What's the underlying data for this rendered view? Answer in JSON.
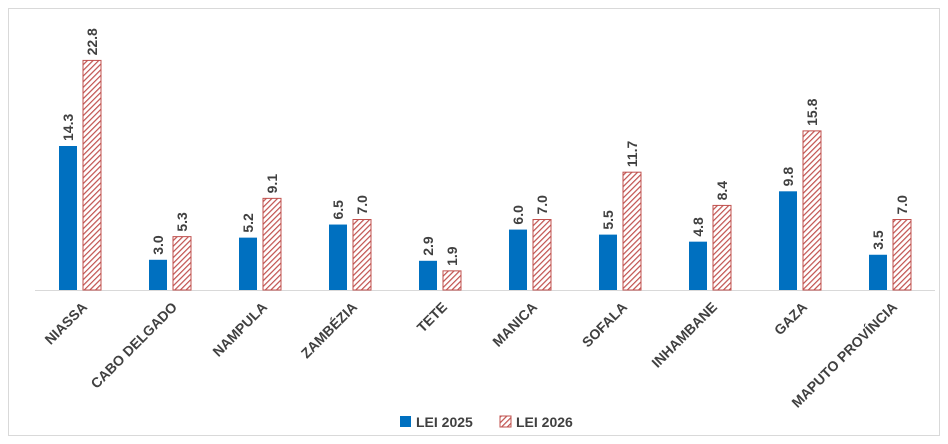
{
  "chart_data": {
    "type": "bar",
    "categories": [
      "NIASSA",
      "CABO DELGADO",
      "NAMPULA",
      "ZAMBÉZIA",
      "TETE",
      "MANICA",
      "SOFALA",
      "INHAMBANE",
      "GAZA",
      "MAPUTO PROVÍNCIA"
    ],
    "series": [
      {
        "name": "LEI 2025",
        "color": "#0070c0",
        "values": [
          14.3,
          3.0,
          5.2,
          6.5,
          2.9,
          6.0,
          5.5,
          4.8,
          9.8,
          3.5
        ],
        "value_labels": [
          "14.3",
          "3.0",
          "5.2",
          "6.5",
          "2.9",
          "6.0",
          "5.5",
          "4.8",
          "9.8",
          "3.5"
        ]
      },
      {
        "name": "LEI 2026",
        "color": "#c0504d",
        "values": [
          22.8,
          5.3,
          9.1,
          7.0,
          1.9,
          7.0,
          11.7,
          8.4,
          15.8,
          7.0
        ],
        "value_labels": [
          "22.8",
          "5.3",
          "9.1",
          "7.0",
          "1.9",
          "7.0",
          "11.7",
          "8.4",
          "15.8",
          "7.0"
        ]
      }
    ],
    "legend": "bottom"
  }
}
